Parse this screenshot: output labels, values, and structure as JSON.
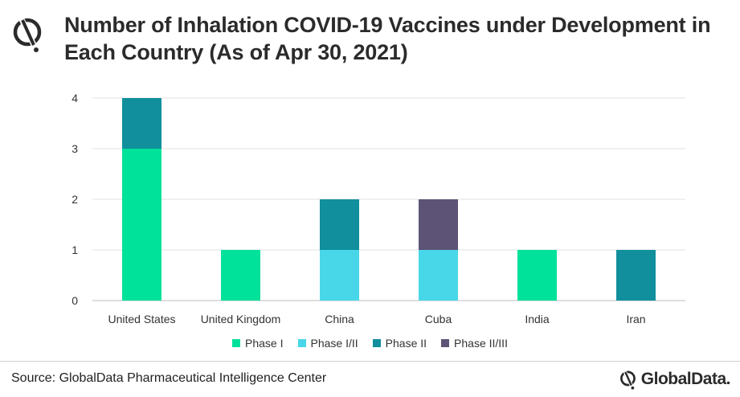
{
  "header": {
    "title": "Number of Inhalation COVID-19 Vaccines under Development in Each Country (As of Apr 30, 2021)"
  },
  "footer": {
    "source": "Source: GlobalData Pharmaceutical Intelligence Center",
    "brand": "GlobalData."
  },
  "chart_data": {
    "type": "bar",
    "stacked": true,
    "title": "Number of Inhalation COVID-19 Vaccines under Development in Each Country (As of Apr 30, 2021)",
    "xlabel": "",
    "ylabel": "",
    "ylim": [
      0,
      4
    ],
    "yticks": [
      0,
      1,
      2,
      3,
      4
    ],
    "grid": true,
    "legend_position": "bottom",
    "categories": [
      "United States",
      "United Kingdom",
      "China",
      "Cuba",
      "India",
      "Iran"
    ],
    "series": [
      {
        "name": "Phase I",
        "color": "#00E19A",
        "values": [
          3,
          1,
          0,
          0,
          1,
          0
        ]
      },
      {
        "name": "Phase I/II",
        "color": "#48D7E8",
        "values": [
          0,
          0,
          1,
          1,
          0,
          0
        ]
      },
      {
        "name": "Phase II",
        "color": "#118F9D",
        "values": [
          1,
          0,
          1,
          0,
          0,
          1
        ]
      },
      {
        "name": "Phase II/III",
        "color": "#5D5377",
        "values": [
          0,
          0,
          0,
          1,
          0,
          0
        ]
      }
    ]
  }
}
